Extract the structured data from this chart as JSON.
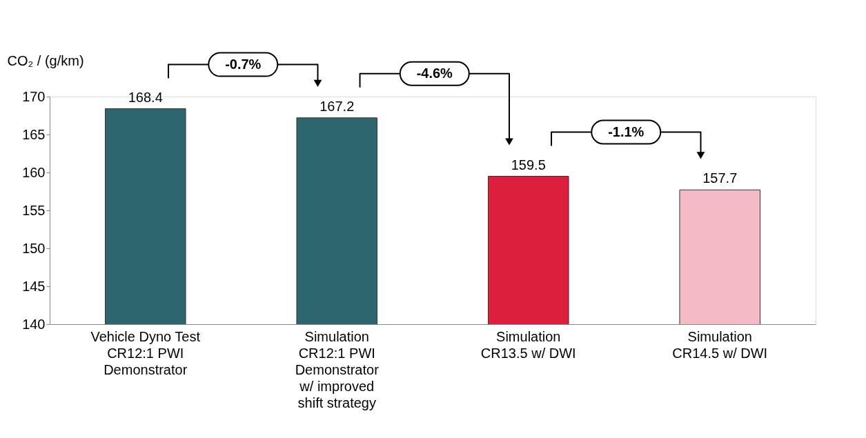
{
  "chart_data": {
    "type": "bar",
    "ylabel": "CO₂ / (g/km)",
    "categories": [
      "Vehicle Dyno Test\nCR12:1 PWI\nDemonstrator",
      "Simulation\nCR12:1 PWI\nDemonstrator\nw/ improved\nshift strategy",
      "Simulation\nCR13.5 w/ DWI",
      "Simulation\nCR14.5 w/ DWI"
    ],
    "values": [
      168.4,
      167.2,
      159.5,
      157.7
    ],
    "colors": [
      "#2e6670",
      "#2e6670",
      "#dc1f3c",
      "#f4bac5"
    ],
    "ylim": [
      140,
      170
    ],
    "yticks": [
      140,
      145,
      150,
      155,
      160,
      165,
      170
    ],
    "data_labels": true,
    "grid": false,
    "legend": false,
    "annotations": [
      "-0.7%",
      "-4.6%",
      "-1.1%"
    ]
  }
}
